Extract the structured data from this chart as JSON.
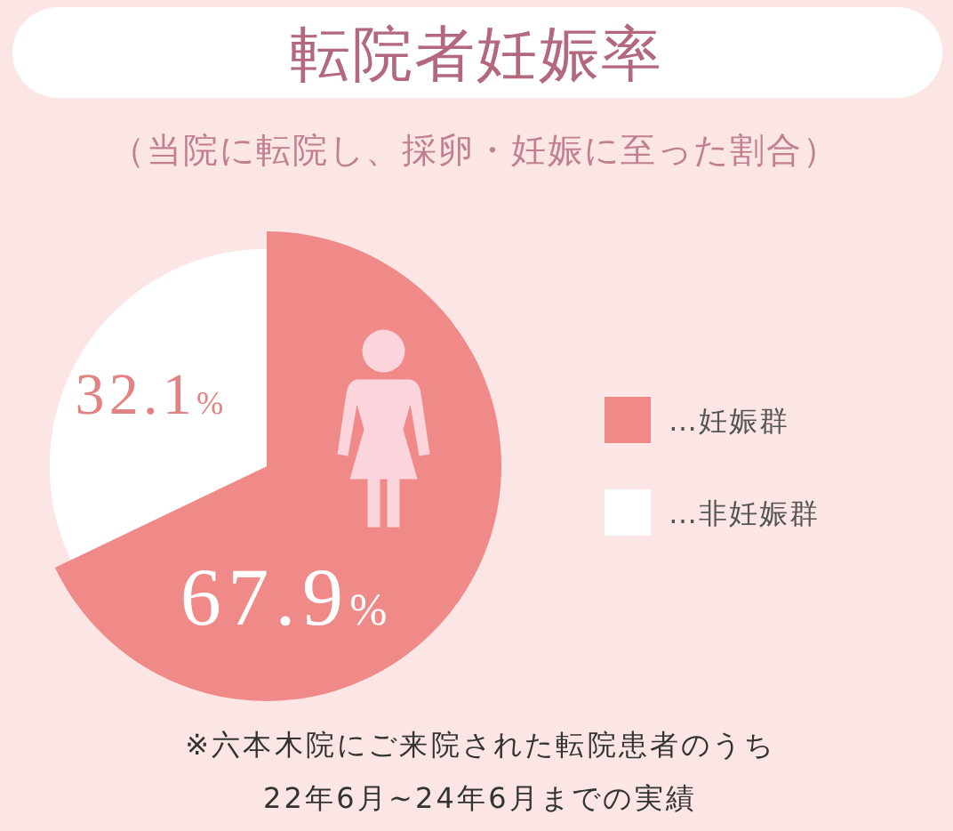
{
  "chart_data": {
    "type": "pie",
    "title": "転院者妊娠率",
    "subtitle": "（当院に転院し、採卵・妊娠に至った割合）",
    "categories": [
      "…妊娠群",
      "…非妊娠群"
    ],
    "values": [
      67.9,
      32.1
    ],
    "colors": [
      "#f08a88",
      "#ffffff"
    ],
    "value_labels": [
      "67.9%",
      "32.1%"
    ],
    "legend": "right",
    "annotations": [
      "※六本木院にご来院された転院患者のうち",
      "22年6月~24年6月までの実績"
    ]
  }
}
